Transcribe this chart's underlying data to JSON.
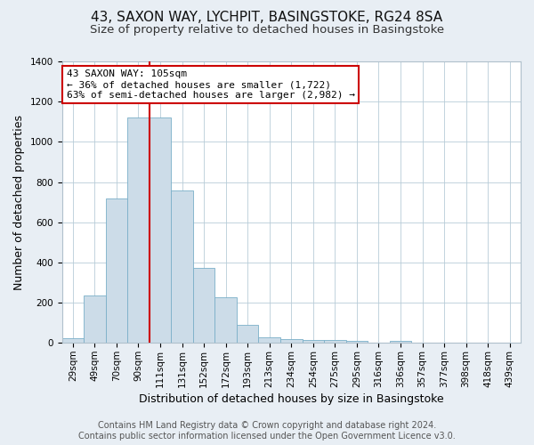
{
  "title_line1": "43, SAXON WAY, LYCHPIT, BASINGSTOKE, RG24 8SA",
  "title_line2": "Size of property relative to detached houses in Basingstoke",
  "xlabel": "Distribution of detached houses by size in Basingstoke",
  "ylabel": "Number of detached properties",
  "categories": [
    "29sqm",
    "49sqm",
    "70sqm",
    "90sqm",
    "111sqm",
    "131sqm",
    "152sqm",
    "172sqm",
    "193sqm",
    "213sqm",
    "234sqm",
    "254sqm",
    "275sqm",
    "295sqm",
    "316sqm",
    "336sqm",
    "357sqm",
    "377sqm",
    "398sqm",
    "418sqm",
    "439sqm"
  ],
  "values": [
    25,
    235,
    720,
    1120,
    1120,
    760,
    375,
    225,
    90,
    30,
    20,
    15,
    15,
    10,
    0,
    10,
    0,
    0,
    0,
    0,
    0
  ],
  "bar_color": "#ccdce8",
  "bar_edge_color": "#7aafc8",
  "vline_x_index": 4,
  "vline_color": "#cc0000",
  "annotation_line1": "43 SAXON WAY: 105sqm",
  "annotation_line2": "← 36% of detached houses are smaller (1,722)",
  "annotation_line3": "63% of semi-detached houses are larger (2,982) →",
  "annotation_box_color": "#ffffff",
  "annotation_box_edge": "#cc0000",
  "ylim": [
    0,
    1400
  ],
  "yticks": [
    0,
    200,
    400,
    600,
    800,
    1000,
    1200,
    1400
  ],
  "bg_color": "#e8eef4",
  "plot_bg_color": "#ffffff",
  "footer_line1": "Contains HM Land Registry data © Crown copyright and database right 2024.",
  "footer_line2": "Contains public sector information licensed under the Open Government Licence v3.0.",
  "title_fontsize": 11,
  "subtitle_fontsize": 9.5,
  "axis_label_fontsize": 9,
  "tick_fontsize": 7.5,
  "annotation_fontsize": 8,
  "footer_fontsize": 7
}
